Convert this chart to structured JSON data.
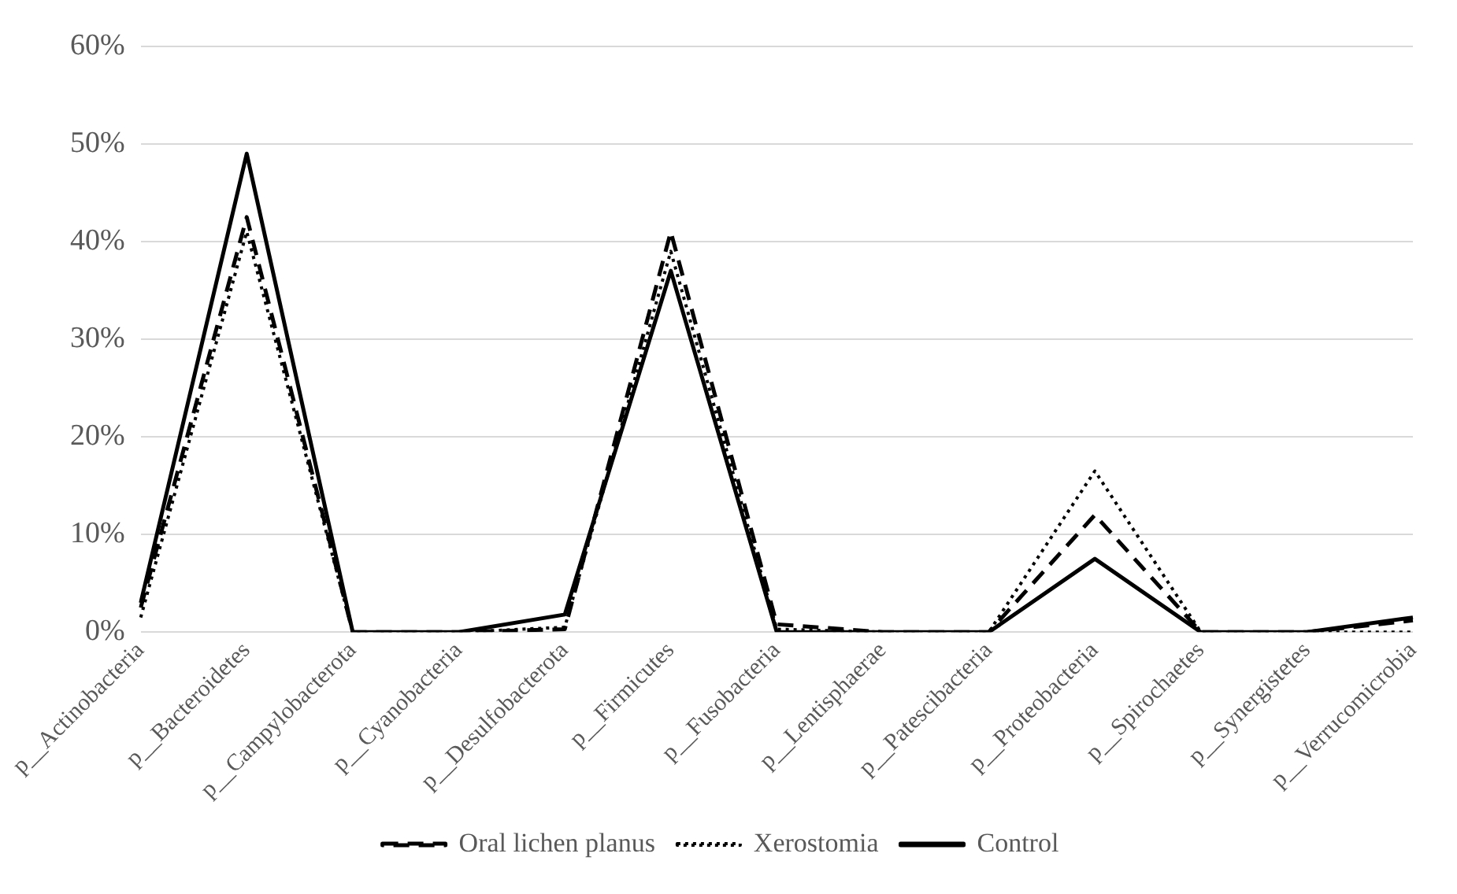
{
  "chart_data": {
    "type": "line",
    "categories": [
      "p__Actinobacteria",
      "p__Bacteroidetes",
      "p__Campylobacterota",
      "p__Cyanobacteria",
      "p__Desulfobacterota",
      "p__Firmicutes",
      "p__Fusobacteria",
      "p__Lentisphaerae",
      "p__Patescibacteria",
      "p__Proteobacteria",
      "p__Spirochaetes",
      "p__Synergistetes",
      "p__Verrucomicrobia"
    ],
    "series": [
      {
        "name": "Oral lichen planus",
        "color": "#000000",
        "line_style": "dashed",
        "values": [
          2.5,
          42.5,
          0,
          0,
          0.3,
          41,
          0.8,
          0,
          0,
          12,
          0,
          0,
          1.2
        ]
      },
      {
        "name": "Xerostomia",
        "color": "#000000",
        "line_style": "dotted",
        "values": [
          1.5,
          41,
          0,
          0,
          0.5,
          39,
          0.3,
          0,
          0,
          16.5,
          0,
          0,
          0
        ]
      },
      {
        "name": "Control",
        "color": "#000000",
        "line_style": "solid",
        "values": [
          3,
          49,
          0,
          0,
          1.8,
          37,
          0,
          0,
          0,
          7.5,
          0,
          0,
          1.5
        ]
      }
    ],
    "ylim": [
      0,
      60
    ],
    "yticks": [
      {
        "value": 0,
        "label": "0%"
      },
      {
        "value": 10,
        "label": "10%"
      },
      {
        "value": 20,
        "label": "20%"
      },
      {
        "value": 30,
        "label": "30%"
      },
      {
        "value": 40,
        "label": "40%"
      },
      {
        "value": 50,
        "label": "50%"
      },
      {
        "value": 60,
        "label": "60%"
      }
    ],
    "grid": "y",
    "legend": "bottom",
    "marker": "none"
  }
}
